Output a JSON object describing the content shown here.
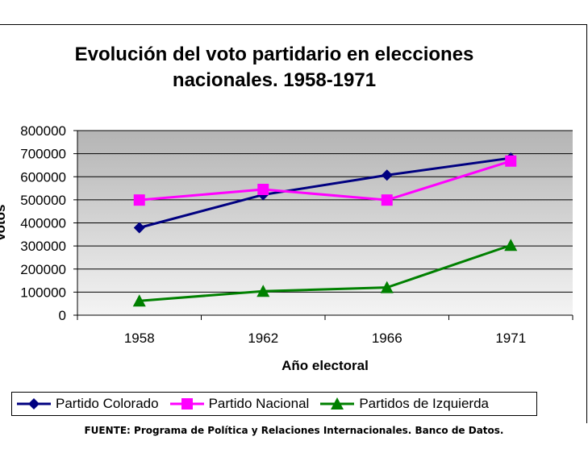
{
  "chart_data": {
    "type": "line",
    "title_line1": "Evolución del voto partidario en elecciones",
    "title_line2": "nacionales. 1958-1971",
    "xlabel": "Año electoral",
    "ylabel": "Votos",
    "categories": [
      "1958",
      "1962",
      "1966",
      "1971"
    ],
    "ylim": [
      0,
      800000
    ],
    "yticks": [
      "0",
      "100000",
      "200000",
      "300000",
      "400000",
      "500000",
      "600000",
      "700000",
      "800000"
    ],
    "series": [
      {
        "name": "Partido Colorado",
        "values": [
          379000,
          522000,
          607000,
          681000
        ],
        "color": "#000080",
        "marker": "diamond"
      },
      {
        "name": "Partido Nacional",
        "values": [
          499000,
          545000,
          499000,
          668000
        ],
        "color": "#ff00ff",
        "marker": "square"
      },
      {
        "name": "Partidos de Izquierda",
        "values": [
          62000,
          104000,
          120000,
          303000
        ],
        "color": "#008000",
        "marker": "triangle"
      }
    ],
    "source": "FUENTE: Programa de Política y Relaciones Internacionales. Banco de Datos."
  }
}
